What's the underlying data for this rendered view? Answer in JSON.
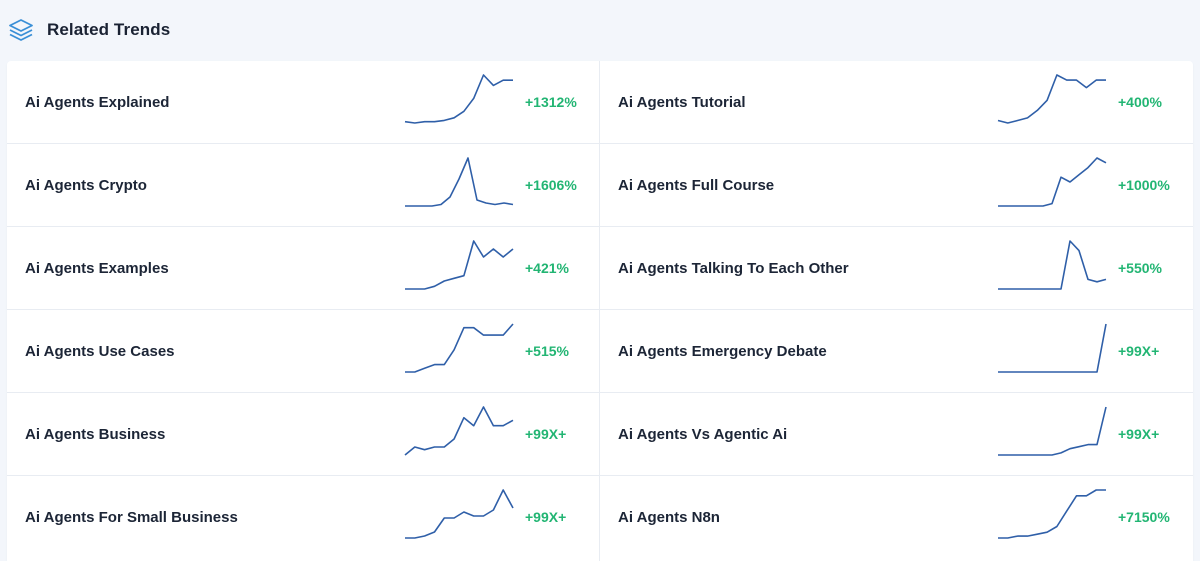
{
  "header": {
    "title": "Related Trends",
    "icon": "layers-icon",
    "icon_color": "#3a8fd6"
  },
  "colors": {
    "line": "#2f5fa8",
    "growth": "#22b573"
  },
  "trends": [
    {
      "label": "Ai Agents Explained",
      "growth": "+1312%",
      "spark": [
        2,
        1,
        2,
        2,
        3,
        5,
        10,
        20,
        38,
        30,
        34,
        34
      ]
    },
    {
      "label": "Ai Agents Tutorial",
      "growth": "+400%",
      "spark": [
        4,
        3,
        4,
        5,
        8,
        12,
        22,
        20,
        20,
        17,
        20,
        20
      ]
    },
    {
      "label": "Ai Agents Crypto",
      "growth": "+1606%",
      "spark": [
        2,
        2,
        2,
        2,
        3,
        8,
        20,
        34,
        6,
        4,
        3,
        4,
        3
      ]
    },
    {
      "label": "Ai Agents Full Course",
      "growth": "+1000%",
      "spark": [
        2,
        2,
        2,
        2,
        2,
        2,
        3,
        14,
        12,
        15,
        18,
        22,
        20
      ]
    },
    {
      "label": "Ai Agents Examples",
      "growth": "+421%",
      "spark": [
        2,
        2,
        2,
        3,
        5,
        6,
        7,
        20,
        14,
        17,
        14,
        17
      ]
    },
    {
      "label": "Ai Agents Talking To Each Other",
      "growth": "+550%",
      "spark": [
        2,
        2,
        2,
        2,
        2,
        2,
        2,
        2,
        22,
        18,
        6,
        5,
        6
      ]
    },
    {
      "label": "Ai Agents Use Cases",
      "growth": "+515%",
      "spark": [
        2,
        2,
        3,
        4,
        4,
        8,
        14,
        14,
        12,
        12,
        12,
        15
      ]
    },
    {
      "label": "Ai Agents Emergency Debate",
      "growth": "+99X+",
      "spark": [
        1,
        1,
        1,
        1,
        1,
        1,
        1,
        1,
        1,
        1,
        1,
        1,
        50
      ]
    },
    {
      "label": "Ai Agents Business",
      "growth": "+99X+",
      "spark": [
        2,
        5,
        4,
        5,
        5,
        8,
        16,
        13,
        20,
        13,
        13,
        15
      ]
    },
    {
      "label": "Ai Agents Vs Agentic Ai",
      "growth": "+99X+",
      "spark": [
        1,
        1,
        1,
        1,
        1,
        1,
        1,
        2,
        4,
        5,
        6,
        6,
        24
      ]
    },
    {
      "label": "Ai Agents For Small Business",
      "growth": "+99X+",
      "spark": [
        2,
        2,
        3,
        5,
        12,
        12,
        15,
        13,
        13,
        16,
        26,
        17
      ]
    },
    {
      "label": "Ai Agents N8n",
      "growth": "+7150%",
      "spark": [
        2,
        2,
        3,
        3,
        4,
        5,
        8,
        16,
        24,
        24,
        27,
        27
      ]
    }
  ]
}
